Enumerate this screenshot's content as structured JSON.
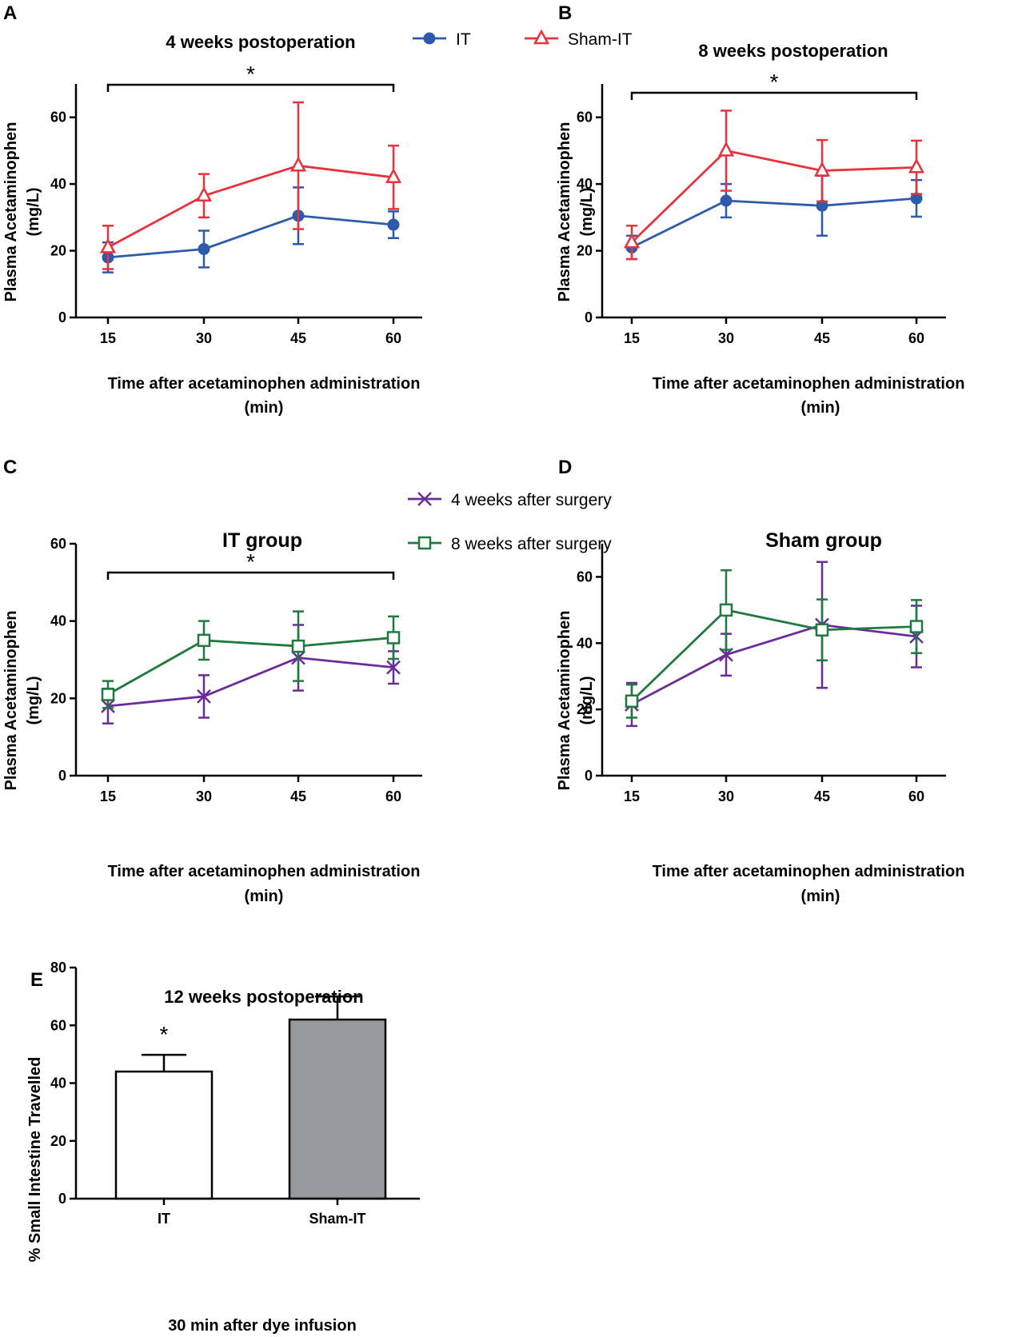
{
  "colors": {
    "it": "#2e5aac",
    "sham": "#e8323c",
    "w4": "#6a2c9a",
    "w8": "#1f7a3e",
    "bar_sham": "#97999b",
    "bar_it": "#ffffff"
  },
  "chart_data": [
    {
      "panel": "A",
      "type": "line",
      "title": "4 weeks postoperation",
      "xlabel": "Time after acetaminophen administration",
      "xlabel2": "(min)",
      "ylabel": "Plasma Acetaminophen",
      "ylabel2": "(mg/L)",
      "x": [
        15,
        30,
        45,
        60
      ],
      "ylim": [
        0,
        70
      ],
      "yticks": [
        0,
        20,
        40,
        60
      ],
      "series": [
        {
          "name": "IT",
          "color_key": "it",
          "marker": "circle",
          "values": [
            18,
            20.5,
            30.5,
            27.8
          ],
          "err": [
            4.5,
            5.5,
            8.5,
            4
          ]
        },
        {
          "name": "Sham-IT",
          "color_key": "sham",
          "marker": "triangle",
          "values": [
            21,
            36.5,
            45.5,
            42
          ],
          "err": [
            6.5,
            6.5,
            19,
            9.5
          ]
        }
      ],
      "significance": {
        "label": "*",
        "from": 15,
        "to": 60
      }
    },
    {
      "panel": "B",
      "type": "line",
      "title": "8 weeks postoperation",
      "xlabel": "Time after acetaminophen administration",
      "xlabel2": "(min)",
      "ylabel": "Plasma Acetaminophen",
      "ylabel2": "(mg/L)",
      "x": [
        15,
        30,
        45,
        60
      ],
      "ylim": [
        0,
        70
      ],
      "yticks": [
        0,
        20,
        40,
        60
      ],
      "series": [
        {
          "name": "IT",
          "color_key": "it",
          "marker": "circle",
          "values": [
            21,
            35,
            33.5,
            35.7
          ],
          "err": [
            3.5,
            5,
            9,
            5.5
          ]
        },
        {
          "name": "Sham-IT",
          "color_key": "sham",
          "marker": "triangle",
          "values": [
            22.5,
            50,
            44,
            45
          ],
          "err": [
            5,
            12,
            9.2,
            8
          ]
        }
      ],
      "significance": {
        "label": "*",
        "from": 15,
        "to": 60
      }
    },
    {
      "panel": "C",
      "type": "line",
      "title": "IT group",
      "xlabel": "Time after acetaminophen administration",
      "xlabel2": "(min)",
      "ylabel": "Plasma Acetaminophen",
      "ylabel2": "(mg/L)",
      "x": [
        15,
        30,
        45,
        60
      ],
      "ylim": [
        0,
        60
      ],
      "yticks": [
        0,
        20,
        40,
        60
      ],
      "series": [
        {
          "name": "4 weeks after surgery",
          "color_key": "w4",
          "marker": "x",
          "values": [
            18,
            20.5,
            30.5,
            28
          ],
          "err": [
            4.5,
            5.5,
            8.5,
            4.2
          ]
        },
        {
          "name": "8 weeks after surgery",
          "color_key": "w8",
          "marker": "square",
          "values": [
            21,
            35,
            33.5,
            35.7
          ],
          "err": [
            3.5,
            5,
            9,
            5.5
          ]
        }
      ],
      "significance": {
        "label": "*",
        "from": 15,
        "to": 60
      }
    },
    {
      "panel": "D",
      "type": "line",
      "title": "Sham group",
      "xlabel": "Time after acetaminophen administration",
      "xlabel2": "(min)",
      "ylabel": "Plasma Acetaminophen",
      "ylabel2": "(mg/L)",
      "x": [
        15,
        30,
        45,
        60
      ],
      "ylim": [
        0,
        70
      ],
      "yticks": [
        0,
        20,
        40,
        60
      ],
      "series": [
        {
          "name": "4 weeks after surgery",
          "color_key": "w4",
          "marker": "x",
          "values": [
            21.5,
            36.5,
            45.5,
            42
          ],
          "err": [
            6.5,
            6.3,
            19,
            9.3
          ]
        },
        {
          "name": "8 weeks after surgery",
          "color_key": "w8",
          "marker": "square",
          "values": [
            22.5,
            50,
            44,
            45
          ],
          "err": [
            5,
            12,
            9.2,
            8
          ]
        }
      ]
    },
    {
      "panel": "E",
      "type": "bar",
      "title": "12 weeks postoperation",
      "xlabel": "30 min after dye infusion",
      "ylabel": "% Small Intestine Travelled",
      "categories": [
        "IT",
        "Sham-IT"
      ],
      "values": [
        44,
        62
      ],
      "err": [
        5.8,
        8
      ],
      "color_keys": [
        "bar_it",
        "bar_sham"
      ],
      "ylim": [
        0,
        80
      ],
      "yticks": [
        0,
        20,
        40,
        60,
        80
      ],
      "significance": {
        "label": "*",
        "category": "IT"
      }
    }
  ],
  "legends": {
    "ab": [
      {
        "label": "IT",
        "color_key": "it",
        "marker": "circle"
      },
      {
        "label": "Sham-IT",
        "color_key": "sham",
        "marker": "triangle"
      }
    ],
    "cd": [
      {
        "label": "4 weeks after surgery",
        "color_key": "w4",
        "marker": "x"
      },
      {
        "label": "8 weeks after surgery",
        "color_key": "w8",
        "marker": "square"
      }
    ]
  }
}
